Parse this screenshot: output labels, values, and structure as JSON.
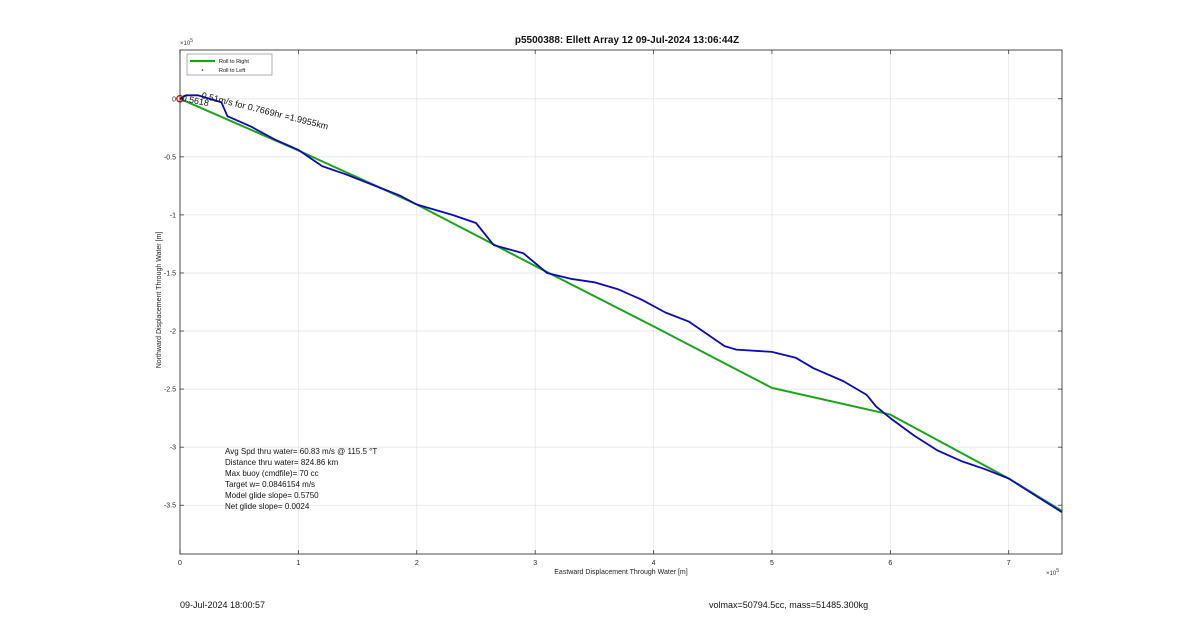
{
  "footer": {
    "timestamp": "09-Jul-2024 18:00:57",
    "volume_mass": "volmax=50794.5cc, mass=51485.300kg"
  },
  "chart_data": {
    "type": "line",
    "title": "p5500388: Ellett Array 12 09-Jul-2024 13:06:44Z",
    "xlabel": "Eastward Displacement Through Water [m]",
    "ylabel": "Northward Displacement Through Water [m]",
    "xlim": [
      0,
      745000
    ],
    "ylim": [
      -392000,
      42000
    ],
    "x_multiplier": "×10",
    "x_exponent": "5",
    "y_multiplier": "×10",
    "y_exponent": "5",
    "xticks": [
      0,
      100000,
      200000,
      300000,
      400000,
      500000,
      600000,
      700000
    ],
    "xtick_labels": [
      "0",
      "1",
      "2",
      "3",
      "4",
      "5",
      "6",
      "7"
    ],
    "yticks": [
      0,
      -50000,
      -100000,
      -150000,
      -200000,
      -250000,
      -300000,
      -350000
    ],
    "ytick_labels": [
      "0",
      "-0.5",
      "-1",
      "-1.5",
      "-2",
      "-2.5",
      "-3",
      "-3.5"
    ],
    "grid": true,
    "legend_position": "top-left",
    "series": [
      {
        "name": "Roll to Right",
        "color": "#1ca31c",
        "style": "line",
        "x": [
          0,
          100000,
          200000,
          300000,
          400000,
          500000,
          600000,
          700000,
          745000
        ],
        "y": [
          0,
          -44500,
          -91000,
          -144000,
          -196000,
          -249000,
          -272000,
          -327000,
          -355000
        ]
      },
      {
        "name": "Roll to Left",
        "color": "#0b0bb0",
        "style": "line",
        "x": [
          0,
          5000,
          15000,
          35000,
          40000,
          60000,
          80000,
          100000,
          120000,
          140000,
          165000,
          185000,
          200000,
          230000,
          250000,
          265000,
          290000,
          310000,
          330000,
          350000,
          370000,
          390000,
          410000,
          430000,
          460000,
          470000,
          500000,
          520000,
          535000,
          560000,
          580000,
          588000,
          600000,
          620000,
          640000,
          660000,
          680000,
          700000,
          720000,
          745000
        ],
        "y": [
          0,
          3000,
          3000,
          -3000,
          -15000,
          -24000,
          -35000,
          -44000,
          -58000,
          -65000,
          -75000,
          -83000,
          -91000,
          -100000,
          -107000,
          -126000,
          -133000,
          -150000,
          -155000,
          -158000,
          -164000,
          -173000,
          -184000,
          -192000,
          -213000,
          -216000,
          -218000,
          -223000,
          -232000,
          -243000,
          -255000,
          -265000,
          -275000,
          -290000,
          -303000,
          -312000,
          -319000,
          -327000,
          -340000,
          -356000
        ]
      }
    ],
    "markers": [
      {
        "x": 0,
        "y": 0,
        "color": "#d81414"
      }
    ],
    "annotation_overlap": "0.5618",
    "annotation": "0.51m/s for 0.7669hr =1.9955km",
    "stats": [
      "Avg Spd thru water= 60.83 m/s @ 115.5 °T",
      "Distance thru water= 824.86 km",
      "Max buoy (cmdfile)= 70 cc",
      "Target w= 0.0846154 m/s",
      "Model glide slope= 0.5750",
      "Net glide slope= 0.0024"
    ]
  }
}
